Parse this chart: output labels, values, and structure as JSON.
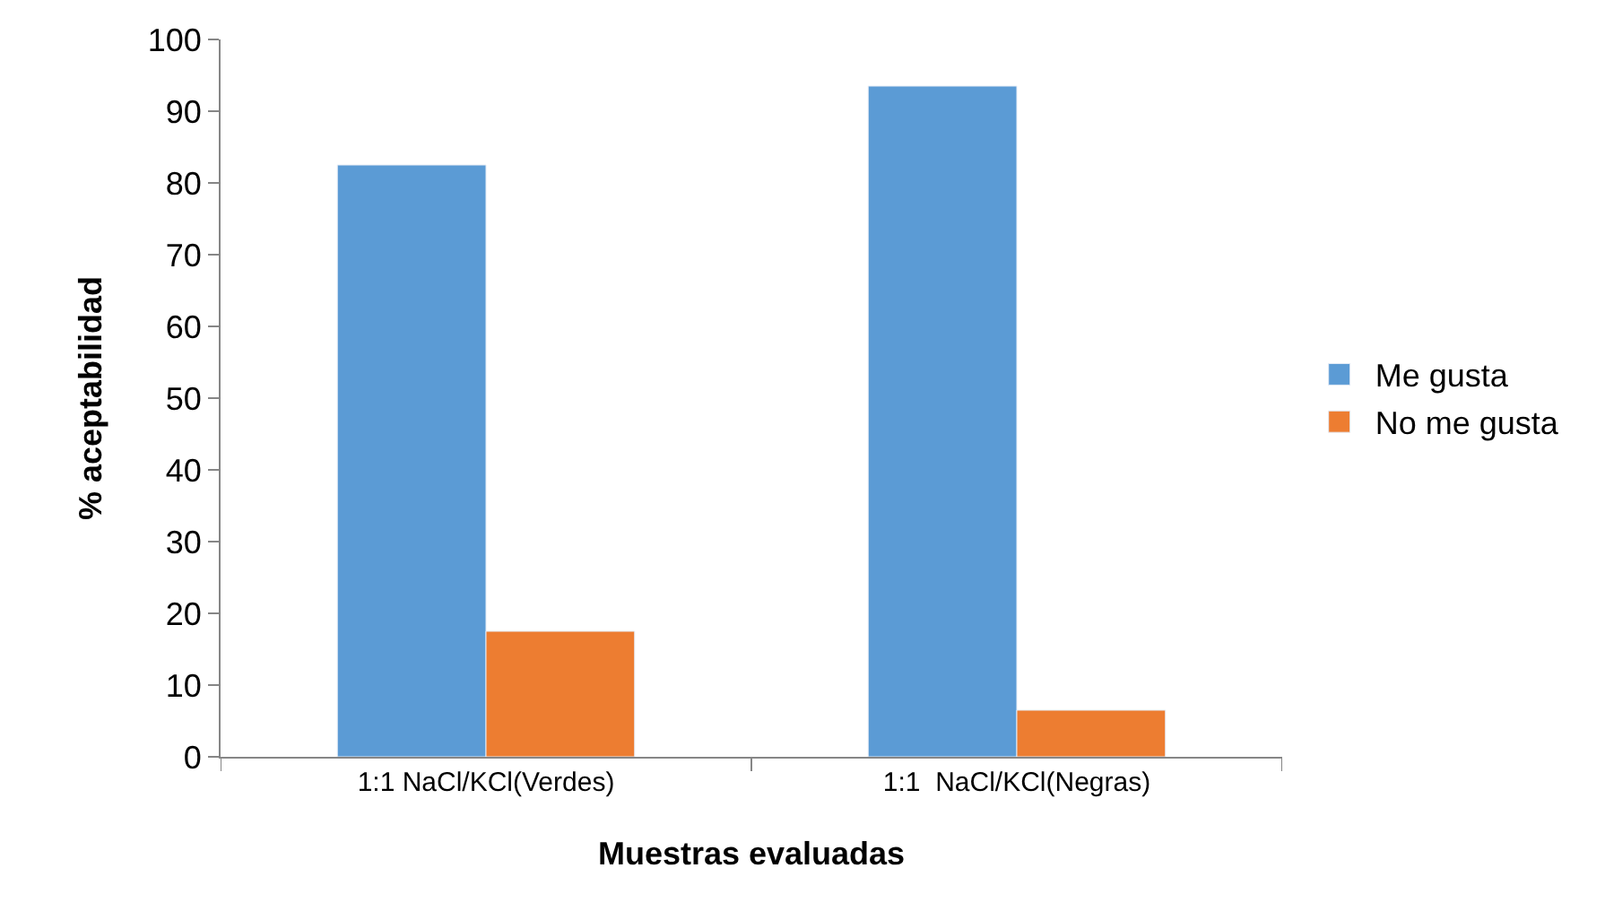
{
  "chart_data": {
    "type": "bar",
    "xlabel": "Muestras evaluadas",
    "ylabel": "% aceptabilidad",
    "categories": [
      "1:1 NaCl/KCl(Verdes)",
      "1:1  NaCl/KCl(Negras)"
    ],
    "series": [
      {
        "name": "Me gusta",
        "color": "#5b9bd5",
        "values": [
          82.5,
          93.5
        ]
      },
      {
        "name": "No me gusta",
        "color": "#ed7d31",
        "values": [
          17.5,
          6.5
        ]
      }
    ],
    "ylim": [
      0,
      100
    ],
    "yticks": [
      0,
      10,
      20,
      30,
      40,
      50,
      60,
      70,
      80,
      90,
      100
    ],
    "legend": "right"
  }
}
